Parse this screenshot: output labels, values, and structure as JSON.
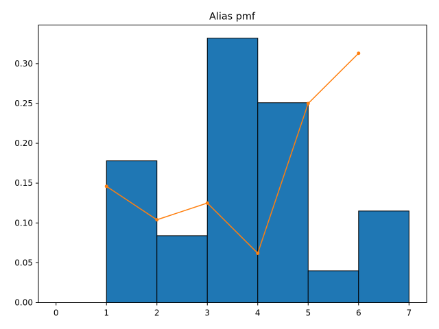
{
  "chart_data": {
    "type": "bar",
    "title": "Alias pmf",
    "xlabel": "",
    "ylabel": "",
    "xlim": [
      -0.35,
      7.35
    ],
    "ylim": [
      0,
      0.3485
    ],
    "xticks": [
      "0",
      "1",
      "2",
      "3",
      "4",
      "5",
      "6",
      "7"
    ],
    "yticks": [
      "0.00",
      "0.05",
      "0.10",
      "0.15",
      "0.20",
      "0.25",
      "0.30"
    ],
    "grid": false,
    "histogram": {
      "bin_edges": [
        0,
        1,
        2,
        3,
        4,
        5,
        6,
        7
      ],
      "values": [
        0.0,
        0.178,
        0.084,
        0.332,
        0.251,
        0.04,
        0.115
      ],
      "color": "#1f77b4",
      "edgecolor": "#000000"
    },
    "line": {
      "x": [
        1,
        2,
        3,
        4,
        5,
        6
      ],
      "y": [
        0.146,
        0.104,
        0.125,
        0.062,
        0.25,
        0.313
      ],
      "color": "#ff7f0e",
      "marker": "point"
    }
  }
}
